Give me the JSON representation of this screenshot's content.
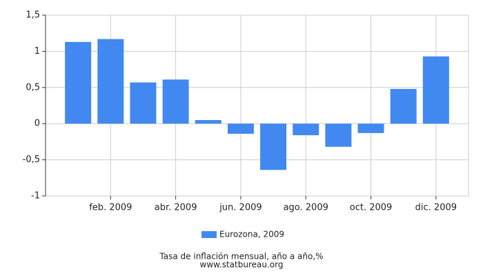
{
  "chart_data": {
    "type": "bar",
    "title": "Tasa de inflación mensual, año a año,%",
    "subtitle": "www.statbureau.org",
    "categories": [
      null,
      "feb. 2009",
      null,
      "abr. 2009",
      null,
      "jun. 2009",
      null,
      "ago. 2009",
      null,
      "oct. 2009",
      null,
      "dic. 2009"
    ],
    "series": [
      {
        "name": "Eurozona, 2009",
        "color": "#4189f0",
        "values": [
          1.13,
          1.17,
          0.57,
          0.61,
          0.05,
          -0.14,
          -0.64,
          -0.16,
          -0.32,
          -0.13,
          0.48,
          0.93
        ]
      }
    ],
    "ylim": [
      -1,
      1.5
    ],
    "yticks": [
      -1,
      {
        "value": -0.5,
        "label": "-0,5"
      },
      0,
      {
        "value": 0.5,
        "label": "0,5"
      },
      1,
      {
        "value": 1.5,
        "label": "1,5"
      }
    ],
    "grid": true,
    "legend": "bottom"
  }
}
